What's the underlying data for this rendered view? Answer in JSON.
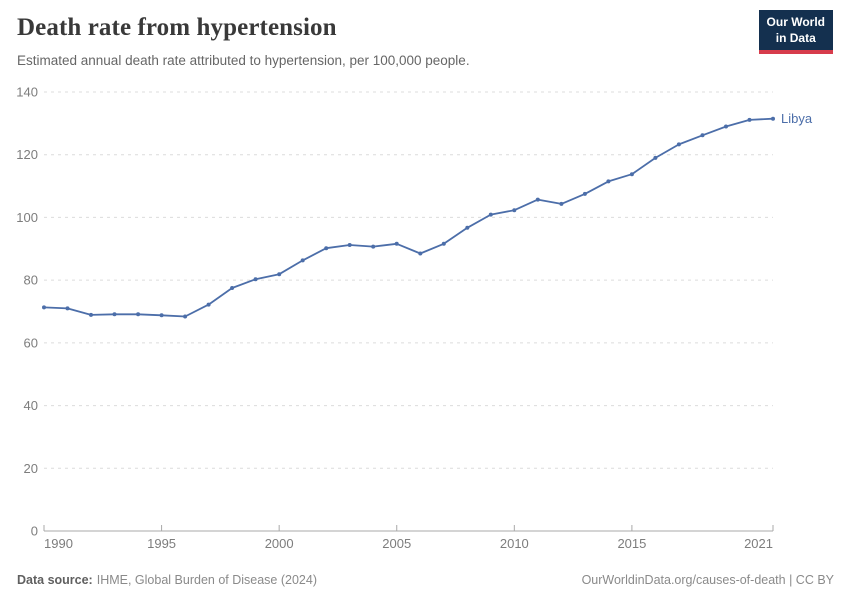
{
  "header": {
    "title": "Death rate from hypertension",
    "subtitle": "Estimated annual death rate attributed to hypertension, per 100,000 people.",
    "logo": {
      "line1": "Our World",
      "line2": "in Data"
    }
  },
  "chart_data": {
    "type": "line",
    "title": "Death rate from hypertension",
    "subtitle": "Estimated annual death rate attributed to hypertension, per 100,000 people.",
    "xlabel": "",
    "ylabel": "",
    "x": [
      1990,
      1991,
      1992,
      1993,
      1994,
      1995,
      1996,
      1997,
      1998,
      1999,
      2000,
      2001,
      2002,
      2003,
      2004,
      2005,
      2006,
      2007,
      2008,
      2009,
      2010,
      2011,
      2012,
      2013,
      2014,
      2015,
      2016,
      2017,
      2018,
      2019,
      2020,
      2021
    ],
    "series": [
      {
        "name": "Libya",
        "color": "#4C6EA9",
        "values": [
          71.3,
          71.0,
          68.9,
          69.1,
          69.1,
          68.8,
          68.4,
          72.2,
          77.5,
          80.3,
          81.9,
          86.3,
          90.2,
          91.2,
          90.7,
          91.6,
          88.5,
          91.6,
          96.7,
          100.9,
          102.3,
          105.7,
          104.3,
          107.5,
          111.5,
          113.8,
          119.0,
          123.3,
          126.2,
          129.0,
          131.1,
          131.5
        ]
      }
    ],
    "x_ticks": [
      1990,
      1995,
      2000,
      2005,
      2010,
      2015,
      2021
    ],
    "y_ticks": [
      0,
      20,
      40,
      60,
      80,
      100,
      120,
      140
    ],
    "xlim": [
      1990,
      2021
    ],
    "ylim": [
      0,
      140
    ],
    "grid": "horizontal-dashed",
    "legend_position": "end-of-line-label"
  },
  "footer": {
    "source_label": "Data source:",
    "source_text": "IHME, Global Burden of Disease (2024)",
    "credit": "OurWorldinData.org/causes-of-death | CC BY"
  },
  "colors": {
    "line": "#4C6EA9",
    "grid": "#DCDCDC",
    "axis": "#A8A8A8",
    "tick_label": "#7D7D7D",
    "title": "#393939",
    "subtitle": "#666666",
    "footer": "#8A8A8A",
    "logo_bg": "#14304F",
    "logo_red": "#D73C4C"
  }
}
